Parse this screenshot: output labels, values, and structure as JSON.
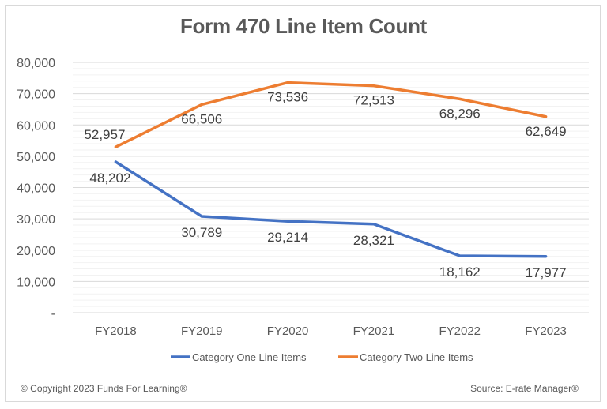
{
  "chart_data": {
    "type": "line",
    "title": "Form 470 Line Item Count",
    "categories": [
      "FY2018",
      "FY2019",
      "FY2020",
      "FY2021",
      "FY2022",
      "FY2023"
    ],
    "series": [
      {
        "name": "Category One Line Items",
        "color": "#4472c4",
        "values": [
          48202,
          30789,
          29214,
          28321,
          18162,
          17977
        ],
        "labels": [
          "48,202",
          "30,789",
          "29,214",
          "28,321",
          "18,162",
          "17,977"
        ]
      },
      {
        "name": "Category Two Line Items",
        "color": "#ed7d31",
        "values": [
          52957,
          66506,
          73536,
          72513,
          68296,
          62649
        ],
        "labels": [
          "52,957",
          "66,506",
          "73,536",
          "72,513",
          "68,296",
          "62,649"
        ]
      }
    ],
    "xlabel": "",
    "ylabel": "",
    "ylim": [
      0,
      80000
    ],
    "yticks": [
      "-",
      "10,000",
      "20,000",
      "30,000",
      "40,000",
      "50,000",
      "60,000",
      "70,000",
      "80,000"
    ],
    "grid": true,
    "legend_position": "bottom"
  },
  "footer": {
    "copyright": "© Copyright 2023 Funds For Learning®",
    "source": "Source: E-rate Manager®"
  }
}
